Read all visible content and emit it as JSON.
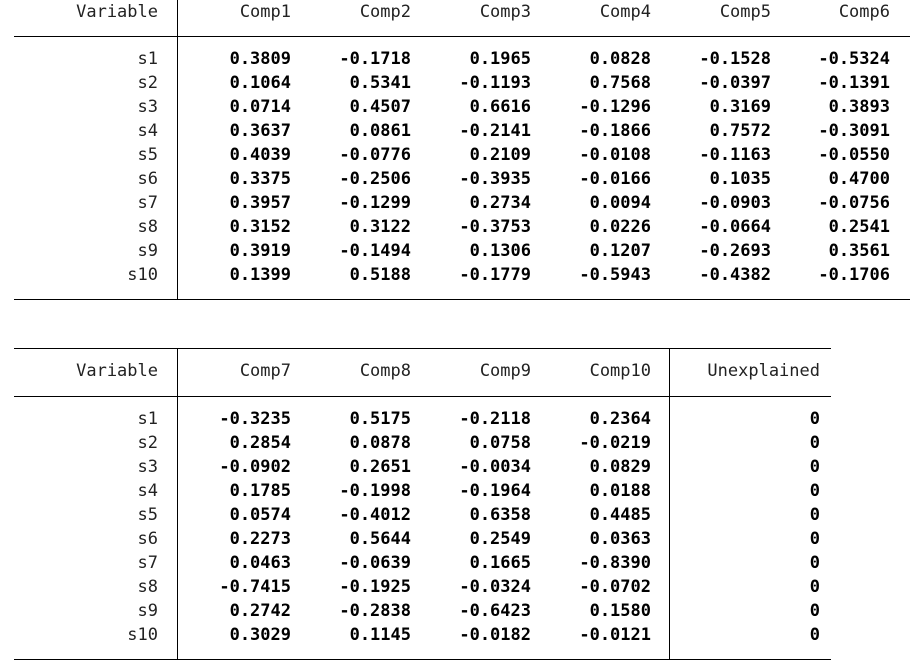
{
  "table1": {
    "header": [
      "Variable",
      "Comp1",
      "Comp2",
      "Comp3",
      "Comp4",
      "Comp5",
      "Comp6"
    ],
    "rows": [
      [
        "s1",
        "0.3809",
        "-0.1718",
        "0.1965",
        "0.0828",
        "-0.1528",
        "-0.5324"
      ],
      [
        "s2",
        "0.1064",
        "0.5341",
        "-0.1193",
        "0.7568",
        "-0.0397",
        "-0.1391"
      ],
      [
        "s3",
        "0.0714",
        "0.4507",
        "0.6616",
        "-0.1296",
        "0.3169",
        "0.3893"
      ],
      [
        "s4",
        "0.3637",
        "0.0861",
        "-0.2141",
        "-0.1866",
        "0.7572",
        "-0.3091"
      ],
      [
        "s5",
        "0.4039",
        "-0.0776",
        "0.2109",
        "-0.0108",
        "-0.1163",
        "-0.0550"
      ],
      [
        "s6",
        "0.3375",
        "-0.2506",
        "-0.3935",
        "-0.0166",
        "0.1035",
        "0.4700"
      ],
      [
        "s7",
        "0.3957",
        "-0.1299",
        "0.2734",
        "0.0094",
        "-0.0903",
        "-0.0756"
      ],
      [
        "s8",
        "0.3152",
        "0.3122",
        "-0.3753",
        "0.0226",
        "-0.0664",
        "0.2541"
      ],
      [
        "s9",
        "0.3919",
        "-0.1494",
        "0.1306",
        "0.1207",
        "-0.2693",
        "0.3561"
      ],
      [
        "s10",
        "0.1399",
        "0.5188",
        "-0.1779",
        "-0.5943",
        "-0.4382",
        "-0.1706"
      ]
    ]
  },
  "table2": {
    "header": [
      "Variable",
      "Comp7",
      "Comp8",
      "Comp9",
      "Comp10",
      "Unexplained"
    ],
    "rows": [
      [
        "s1",
        "-0.3235",
        "0.5175",
        "-0.2118",
        "0.2364",
        "0"
      ],
      [
        "s2",
        "0.2854",
        "0.0878",
        "0.0758",
        "-0.0219",
        "0"
      ],
      [
        "s3",
        "-0.0902",
        "0.2651",
        "-0.0034",
        "0.0829",
        "0"
      ],
      [
        "s4",
        "0.1785",
        "-0.1998",
        "-0.1964",
        "0.0188",
        "0"
      ],
      [
        "s5",
        "0.0574",
        "-0.4012",
        "0.6358",
        "0.4485",
        "0"
      ],
      [
        "s6",
        "0.2273",
        "0.5644",
        "0.2549",
        "0.0363",
        "0"
      ],
      [
        "s7",
        "0.0463",
        "-0.0639",
        "0.1665",
        "-0.8390",
        "0"
      ],
      [
        "s8",
        "-0.7415",
        "-0.1925",
        "-0.0324",
        "-0.0702",
        "0"
      ],
      [
        "s9",
        "0.2742",
        "-0.2838",
        "-0.6423",
        "0.1580",
        "0"
      ],
      [
        "s10",
        "0.3029",
        "0.1145",
        "-0.0182",
        "-0.0121",
        "0"
      ]
    ]
  }
}
